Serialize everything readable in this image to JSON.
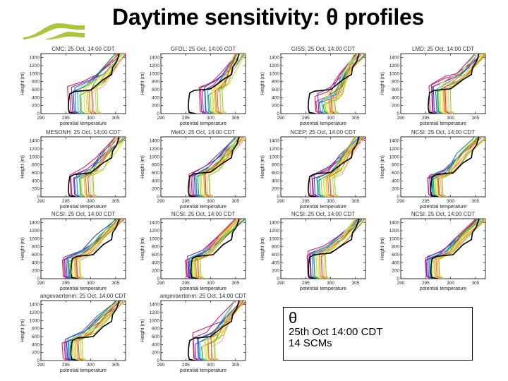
{
  "page": {
    "title": "Daytime sensitivity: θ profiles",
    "logo_icon": "green-wave-logo-icon",
    "logo_color": "#a8c83a"
  },
  "legend_box": {
    "symbol": "θ",
    "line1": "25th Oct 14:00 CDT",
    "line2": "14 SCMs"
  },
  "chart_data": [
    {
      "type": "line",
      "title": "CMC: 25 Oct, 14:00 CDT",
      "xlabel": "potential temperature",
      "ylabel": "Height (m)",
      "xlim": [
        290,
        307
      ],
      "ylim": [
        0,
        1500
      ],
      "xticks": [
        "290",
        "295",
        "300",
        "305"
      ],
      "yticks": [
        "0",
        "200",
        "400",
        "600",
        "800",
        "1000",
        "1200",
        "1400"
      ],
      "observed": {
        "name": "observation",
        "color": "#000000",
        "theta_mixed": 295.5,
        "bl_top": 550
      },
      "ensemble_mixed_range": [
        295.5,
        301.5
      ],
      "ensemble_bl_top_range": [
        450,
        700
      ]
    },
    {
      "type": "line",
      "title": "GFDL: 25 Oct, 14:00 CDT",
      "xlabel": "potential temperature",
      "ylabel": "Height (m)",
      "xlim": [
        290,
        307
      ],
      "ylim": [
        0,
        1500
      ],
      "xticks": [
        "290",
        "295",
        "300",
        "305"
      ],
      "yticks": [
        "0",
        "200",
        "400",
        "600",
        "800",
        "1000",
        "1200",
        "1400"
      ],
      "observed": {
        "name": "observation",
        "color": "#000000",
        "theta_mixed": 295.5,
        "bl_top": 580
      },
      "ensemble_mixed_range": [
        298,
        302.5
      ],
      "ensemble_bl_top_range": [
        450,
        700
      ]
    },
    {
      "type": "line",
      "title": "GISS: 25 Oct, 14:00 CDT",
      "xlabel": "potential temperature",
      "ylabel": "Height (m)",
      "xlim": [
        290,
        307
      ],
      "ylim": [
        0,
        1500
      ],
      "xticks": [
        "290",
        "295",
        "300",
        "305"
      ],
      "yticks": [
        "0",
        "200",
        "400",
        "600",
        "800",
        "1000",
        "1200",
        "1400"
      ],
      "observed": {
        "name": "observation",
        "color": "#000000",
        "theta_mixed": 295.5,
        "bl_top": 560
      },
      "ensemble_mixed_range": [
        297,
        301
      ],
      "ensemble_bl_top_range": [
        200,
        500
      ]
    },
    {
      "type": "line",
      "title": "LMD: 25 Oct, 14:00 CDT",
      "xlabel": "potential temperature",
      "ylabel": "Height (m)",
      "xlim": [
        290,
        307
      ],
      "ylim": [
        0,
        1500
      ],
      "xticks": [
        "290",
        "295",
        "300",
        "305"
      ],
      "yticks": [
        "0",
        "200",
        "400",
        "600",
        "800",
        "1000",
        "1200",
        "1400"
      ],
      "observed": {
        "name": "observation",
        "color": "#000000",
        "theta_mixed": 295.5,
        "bl_top": 580
      },
      "ensemble_mixed_range": [
        296,
        300
      ],
      "ensemble_bl_top_range": [
        550,
        750
      ]
    },
    {
      "type": "line",
      "title": "MESONH: 25 Oct, 14:00 CDT",
      "xlabel": "potential temperature",
      "ylabel": "Height (m)",
      "xlim": [
        290,
        307
      ],
      "ylim": [
        0,
        1500
      ],
      "xticks": [
        "290",
        "295",
        "300",
        "305"
      ],
      "yticks": [
        "0",
        "200",
        "400",
        "600",
        "800",
        "1000",
        "1200",
        "1400"
      ],
      "observed": {
        "name": "observation",
        "color": "#000000",
        "theta_mixed": 295.5,
        "bl_top": 560
      },
      "ensemble_mixed_range": [
        296,
        300.5
      ],
      "ensemble_bl_top_range": [
        450,
        600
      ]
    },
    {
      "type": "line",
      "title": "MetO: 25 Oct, 14:00 CDT",
      "xlabel": "potential temperature",
      "ylabel": "Height (m)",
      "xlim": [
        290,
        307
      ],
      "ylim": [
        0,
        1500
      ],
      "xticks": [
        "290",
        "295",
        "300",
        "305"
      ],
      "yticks": [
        "0",
        "200",
        "400",
        "600",
        "800",
        "1000",
        "1200",
        "1400"
      ],
      "observed": {
        "name": "observation",
        "color": "#000000",
        "theta_mixed": 295.5,
        "bl_top": 580
      },
      "ensemble_mixed_range": [
        296,
        300
      ],
      "ensemble_bl_top_range": [
        500,
        620
      ]
    },
    {
      "type": "line",
      "title": "NCEP: 25 Oct, 14:00 CDT",
      "xlabel": "potential temperature",
      "ylabel": "Height (m)",
      "xlim": [
        290,
        307
      ],
      "ylim": [
        0,
        1500
      ],
      "xticks": [
        "290",
        "295",
        "300",
        "305"
      ],
      "yticks": [
        "0",
        "200",
        "400",
        "600",
        "800",
        "1000",
        "1200",
        "1400"
      ],
      "observed": {
        "name": "observation",
        "color": "#000000",
        "theta_mixed": 295.5,
        "bl_top": 570
      },
      "ensemble_mixed_range": [
        296,
        301
      ],
      "ensemble_bl_top_range": [
        400,
        600
      ]
    },
    {
      "type": "line",
      "title": "NCSI: 25 Oct, 14:00 CDT",
      "xlabel": "potential temperature",
      "ylabel": "Height (m)",
      "xlim": [
        290,
        307
      ],
      "ylim": [
        0,
        1500
      ],
      "xticks": [
        "290",
        "295",
        "300",
        "305"
      ],
      "yticks": [
        "0",
        "200",
        "400",
        "600",
        "800",
        "1000",
        "1200",
        "1400"
      ],
      "observed": {
        "name": "observation",
        "color": "#000000",
        "theta_mixed": 296,
        "bl_top": 560
      },
      "ensemble_mixed_range": [
        295.5,
        298.5
      ],
      "ensemble_bl_top_range": [
        430,
        560
      ]
    },
    {
      "type": "line",
      "title": "NCSI: 25 Oct, 14:00 CDT",
      "xlabel": "potential temperature",
      "ylabel": "Height (m)",
      "xlim": [
        290,
        307
      ],
      "ylim": [
        0,
        1500
      ],
      "xticks": [
        "290",
        "295",
        "300",
        "305"
      ],
      "yticks": [
        "0",
        "200",
        "400",
        "600",
        "800",
        "1000",
        "1200",
        "1400"
      ],
      "observed": {
        "name": "observation",
        "color": "#000000",
        "theta_mixed": 296,
        "bl_top": 560
      },
      "ensemble_mixed_range": [
        294.5,
        298
      ],
      "ensemble_bl_top_range": [
        420,
        560
      ]
    },
    {
      "type": "line",
      "title": "NCSI: 25 Oct, 14:00 CDT",
      "xlabel": "potential temperature",
      "ylabel": "Height (m)",
      "xlim": [
        290,
        307
      ],
      "ylim": [
        0,
        1500
      ],
      "xticks": [
        "290",
        "295",
        "300",
        "305"
      ],
      "yticks": [
        "0",
        "200",
        "400",
        "600",
        "800",
        "1000",
        "1200",
        "1400"
      ],
      "observed": {
        "name": "observation",
        "color": "#000000",
        "theta_mixed": 296,
        "bl_top": 560
      },
      "ensemble_mixed_range": [
        295,
        298
      ],
      "ensemble_bl_top_range": [
        420,
        560
      ]
    },
    {
      "type": "line",
      "title": "NCSI: 25 Oct, 14:00 CDT",
      "xlabel": "potential temperature",
      "ylabel": "Height (m)",
      "xlim": [
        290,
        307
      ],
      "ylim": [
        0,
        1500
      ],
      "xticks": [
        "290",
        "295",
        "300",
        "305"
      ],
      "yticks": [
        "0",
        "200",
        "400",
        "600",
        "800",
        "1000",
        "1200",
        "1400"
      ],
      "observed": {
        "name": "observation",
        "color": "#000000",
        "theta_mixed": 295.5,
        "bl_top": 600
      },
      "ensemble_mixed_range": [
        295.5,
        299
      ],
      "ensemble_bl_top_range": [
        550,
        700
      ]
    },
    {
      "type": "line",
      "title": "NCSI: 25 Oct, 14:00 CDT",
      "xlabel": "potential temperature",
      "ylabel": "Height (m)",
      "xlim": [
        290,
        307
      ],
      "ylim": [
        0,
        1500
      ],
      "xticks": [
        "290",
        "295",
        "300",
        "305"
      ],
      "yticks": [
        "0",
        "200",
        "400",
        "600",
        "800",
        "1000",
        "1200",
        "1400"
      ],
      "observed": {
        "name": "observation",
        "color": "#000000",
        "theta_mixed": 296,
        "bl_top": 560
      },
      "ensemble_mixed_range": [
        295,
        298
      ],
      "ensemble_bl_top_range": [
        450,
        580
      ]
    },
    {
      "type": "line",
      "title": "angevaertenm: 25 Oct, 14:00 CDT",
      "xlabel": "potential temperature",
      "ylabel": "Height (m)",
      "xlim": [
        290,
        307
      ],
      "ylim": [
        0,
        1500
      ],
      "xticks": [
        "290",
        "295",
        "300",
        "305"
      ],
      "yticks": [
        "0",
        "200",
        "400",
        "600",
        "800",
        "1000",
        "1200",
        "1400"
      ],
      "observed": {
        "name": "observation",
        "color": "#000000",
        "theta_mixed": 296,
        "bl_top": 560
      },
      "ensemble_mixed_range": [
        294.5,
        298.5
      ],
      "ensemble_bl_top_range": [
        430,
        580
      ]
    },
    {
      "type": "line",
      "title": "angevaertenm: 25 Oct, 14:00 CDT",
      "xlabel": "potential temperature",
      "ylabel": "Height (m)",
      "xlim": [
        290,
        307
      ],
      "ylim": [
        0,
        1500
      ],
      "xticks": [
        "290",
        "295",
        "300",
        "305"
      ],
      "yticks": [
        "0",
        "200",
        "400",
        "600",
        "800",
        "1000",
        "1200",
        "1400"
      ],
      "observed": {
        "name": "observation",
        "color": "#000000",
        "theta_mixed": 295.5,
        "bl_top": 560
      },
      "ensemble_mixed_range": [
        296.5,
        301
      ],
      "ensemble_bl_top_range": [
        300,
        700
      ]
    }
  ],
  "series_colors": [
    "#e6194b",
    "#c0218f",
    "#7b2fbf",
    "#3b3bd6",
    "#1f78b4",
    "#17becf",
    "#2ca02c",
    "#8fd14f",
    "#d4e157",
    "#f0e442",
    "#ff9f1c",
    "#e67e22",
    "#b5651d",
    "#f4a6c6",
    "#cddc39",
    "#9acd32"
  ]
}
